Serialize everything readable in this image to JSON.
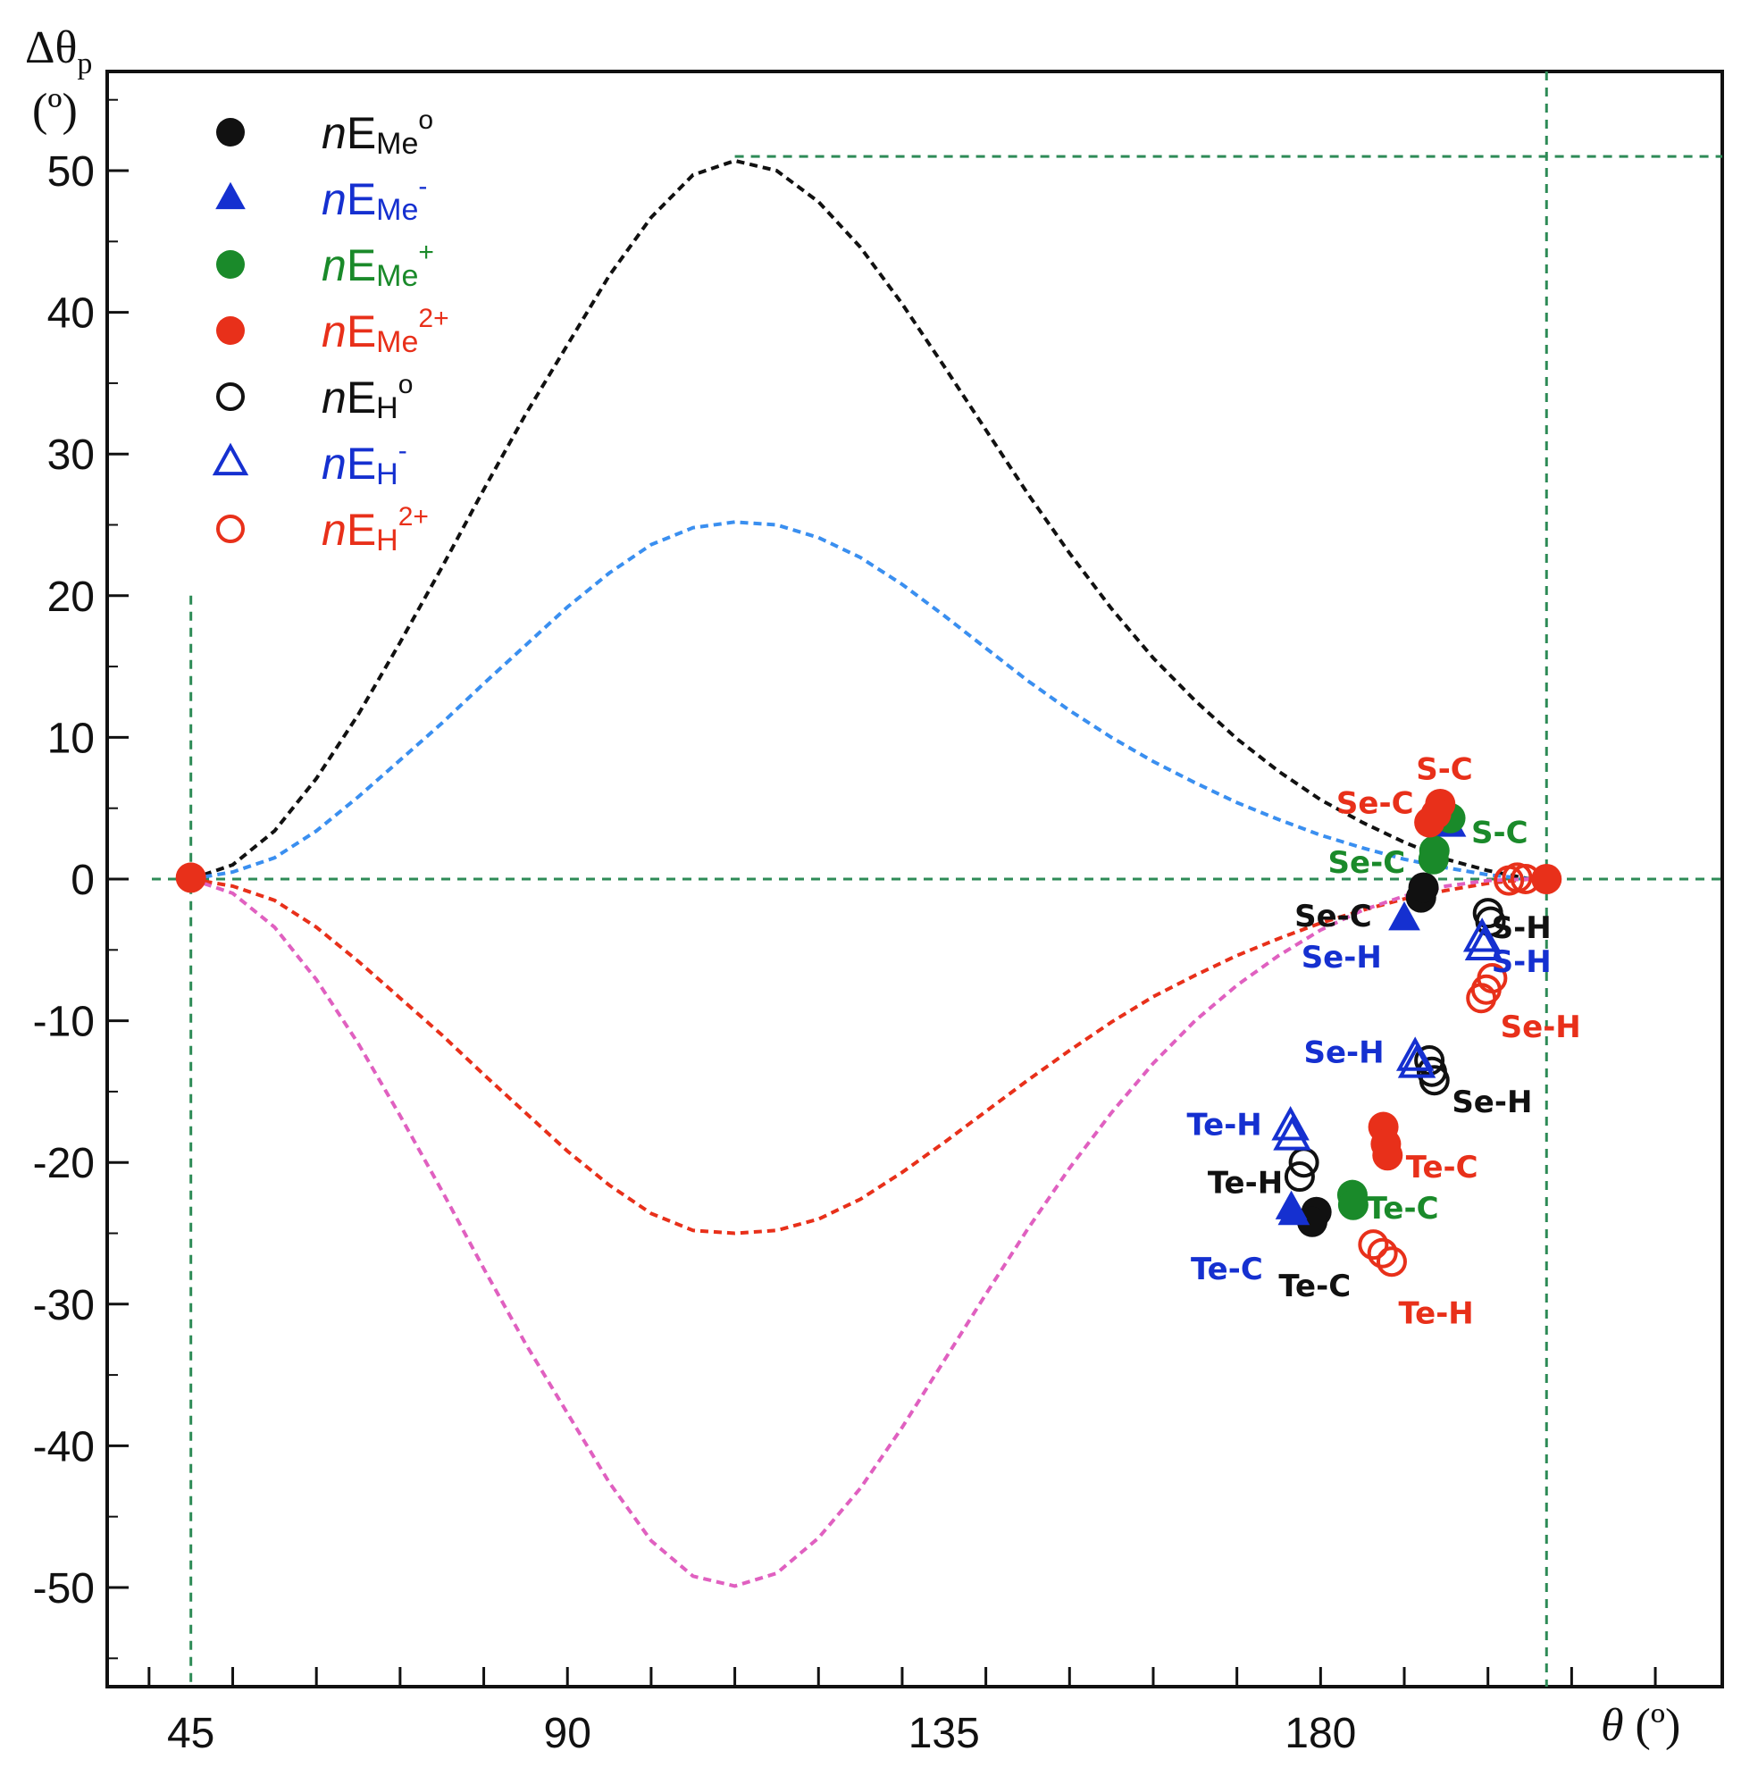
{
  "chart_data": {
    "type": "scatter",
    "title": "",
    "xlabel": "θ (º)",
    "ylabel": "Δθp (º)",
    "xlim": [
      35,
      228
    ],
    "ylim": [
      -57,
      57
    ],
    "x_ticks": [
      45,
      90,
      135,
      180
    ],
    "y_ticks": [
      50,
      40,
      30,
      20,
      10,
      0,
      -10,
      -20,
      -30,
      -40,
      -50
    ],
    "y_tick_labels": [
      "50",
      "40",
      "30",
      "20",
      "10",
      "0",
      "-10",
      "-20",
      "-30",
      "-40",
      "-50"
    ],
    "axis_labels": {
      "x_text": "θ",
      "x_unit": " (º)",
      "y_text": "Δθ",
      "y_sub": "p",
      "y_unit": "(º)"
    },
    "colors": {
      "black": "#111111",
      "blue": "#1530d0",
      "green": "#1a8a2a",
      "red": "#e8301a",
      "guide": "#2e8b57",
      "curve_blue": "#3a8ff0",
      "curve_pink": "#e060c0"
    },
    "reference_lines": {
      "x": [
        45,
        207
      ],
      "y": [
        0,
        51
      ]
    },
    "legend": [
      {
        "prefix": "n",
        "e": "E",
        "sub": "Me",
        "sup": "o",
        "marker": "filled-circle",
        "color": "#111111"
      },
      {
        "prefix": "n",
        "e": "E",
        "sub": "Me",
        "sup": "-",
        "marker": "filled-triangle",
        "color": "#1530d0"
      },
      {
        "prefix": "n",
        "e": "E",
        "sub": "Me",
        "sup": "+",
        "marker": "filled-circle",
        "color": "#1a8a2a"
      },
      {
        "prefix": "n",
        "e": "E",
        "sub": "Me",
        "sup": "2+",
        "marker": "filled-circle",
        "color": "#e8301a"
      },
      {
        "prefix": "n",
        "e": "E",
        "sub": "H",
        "sup": "o",
        "marker": "open-circle",
        "color": "#111111"
      },
      {
        "prefix": "n",
        "e": "E",
        "sub": "H",
        "sup": "-",
        "marker": "open-triangle",
        "color": "#1530d0"
      },
      {
        "prefix": "n",
        "e": "E",
        "sub": "H",
        "sup": "2+",
        "marker": "open-circle",
        "color": "#e8301a"
      }
    ],
    "curves": [
      {
        "name": "upper-black",
        "color": "#111111",
        "x": [
          45,
          50,
          55,
          60,
          65,
          70,
          75,
          80,
          85,
          90,
          95,
          100,
          105,
          110,
          115,
          120,
          125,
          130,
          135,
          140,
          145,
          150,
          155,
          160,
          165,
          170,
          175,
          180,
          185,
          190,
          195,
          200,
          205
        ],
        "y": [
          0,
          1.0,
          3.4,
          7.1,
          11.6,
          16.7,
          22.0,
          27.5,
          32.8,
          37.7,
          42.6,
          46.7,
          49.7,
          50.7,
          50.0,
          47.8,
          44.6,
          40.6,
          36.2,
          31.7,
          27.2,
          23.0,
          19.1,
          15.6,
          12.6,
          9.9,
          7.6,
          5.6,
          4.0,
          2.6,
          1.4,
          0.6,
          0
        ]
      },
      {
        "name": "upper-blue",
        "color": "#3a8ff0",
        "x": [
          45,
          50,
          55,
          60,
          65,
          70,
          75,
          80,
          85,
          90,
          95,
          100,
          105,
          110,
          115,
          120,
          125,
          130,
          135,
          140,
          145,
          150,
          155,
          160,
          165,
          170,
          175,
          180,
          185,
          190,
          195,
          200,
          205
        ],
        "y": [
          0,
          0.5,
          1.5,
          3.4,
          5.8,
          8.4,
          11.0,
          13.8,
          16.5,
          19.2,
          21.6,
          23.6,
          24.8,
          25.2,
          25.0,
          24.1,
          22.7,
          20.8,
          18.6,
          16.3,
          14.0,
          11.9,
          10.0,
          8.3,
          6.8,
          5.4,
          4.2,
          3.1,
          2.2,
          1.4,
          0.8,
          0.3,
          0
        ]
      },
      {
        "name": "lower-red",
        "color": "#e8301a",
        "x": [
          45,
          50,
          55,
          60,
          65,
          70,
          75,
          80,
          85,
          90,
          95,
          100,
          105,
          110,
          115,
          120,
          125,
          130,
          135,
          140,
          145,
          150,
          155,
          160,
          165,
          170,
          175,
          180,
          185,
          190,
          195,
          200,
          205
        ],
        "y": [
          0,
          -0.5,
          -1.5,
          -3.4,
          -5.8,
          -8.4,
          -11.0,
          -13.8,
          -16.5,
          -19.2,
          -21.6,
          -23.6,
          -24.8,
          -25.0,
          -24.8,
          -24.0,
          -22.6,
          -20.7,
          -18.6,
          -16.4,
          -14.2,
          -12.1,
          -10.1,
          -8.3,
          -6.8,
          -5.4,
          -4.2,
          -3.1,
          -2.2,
          -1.4,
          -0.8,
          -0.3,
          0
        ]
      },
      {
        "name": "lower-pink",
        "color": "#e060c0",
        "x": [
          45,
          50,
          55,
          60,
          65,
          70,
          75,
          80,
          85,
          90,
          95,
          100,
          105,
          110,
          115,
          120,
          125,
          130,
          135,
          140,
          145,
          150,
          155,
          160,
          165,
          170,
          175,
          180,
          185,
          190,
          195,
          200,
          205
        ],
        "y": [
          0,
          -1.0,
          -3.4,
          -7.1,
          -11.6,
          -16.7,
          -22.0,
          -27.5,
          -32.8,
          -37.7,
          -42.6,
          -46.7,
          -49.2,
          -49.9,
          -49.0,
          -46.5,
          -43.0,
          -38.7,
          -34.0,
          -29.3,
          -24.7,
          -20.4,
          -16.5,
          -13.0,
          -10.0,
          -7.5,
          -5.4,
          -3.6,
          -2.2,
          -1.2,
          -0.5,
          -0.1,
          0
        ]
      }
    ],
    "series": [
      {
        "name": "nEMeo",
        "marker": "filled-circle",
        "color": "#111111",
        "points": [
          {
            "x": 192.0,
            "y": -1.3
          },
          {
            "x": 192.3,
            "y": -0.6
          },
          {
            "x": 179.5,
            "y": -23.5
          },
          {
            "x": 179.0,
            "y": -24.2
          }
        ]
      },
      {
        "name": "nEMe-",
        "marker": "filled-triangle",
        "color": "#1530d0",
        "points": [
          {
            "x": 195.5,
            "y": 3.8
          },
          {
            "x": 190.0,
            "y": -2.8
          },
          {
            "x": 176.5,
            "y": -23.2
          },
          {
            "x": 176.8,
            "y": -23.6
          }
        ]
      },
      {
        "name": "nEMe+",
        "marker": "filled-circle",
        "color": "#1a8a2a",
        "points": [
          {
            "x": 195.5,
            "y": 4.3
          },
          {
            "x": 193.5,
            "y": 1.4
          },
          {
            "x": 193.6,
            "y": 2.0
          },
          {
            "x": 183.8,
            "y": -22.3
          },
          {
            "x": 183.9,
            "y": -23.0
          }
        ]
      },
      {
        "name": "nEMe2+",
        "marker": "filled-circle",
        "color": "#e8301a",
        "points": [
          {
            "x": 194.3,
            "y": 5.3
          },
          {
            "x": 193.8,
            "y": 4.6
          },
          {
            "x": 193.0,
            "y": 4.0
          },
          {
            "x": 207.0,
            "y": 0.0
          },
          {
            "x": 45.0,
            "y": 0.1
          },
          {
            "x": 187.5,
            "y": -17.5
          },
          {
            "x": 187.8,
            "y": -18.7
          },
          {
            "x": 188.0,
            "y": -19.5
          }
        ]
      },
      {
        "name": "nEHo",
        "marker": "open-circle",
        "color": "#111111",
        "points": [
          {
            "x": 200.0,
            "y": -2.4
          },
          {
            "x": 200.3,
            "y": -3.0
          },
          {
            "x": 193.0,
            "y": -12.8
          },
          {
            "x": 193.3,
            "y": -13.6
          },
          {
            "x": 193.6,
            "y": -14.2
          },
          {
            "x": 178.0,
            "y": -20.0
          },
          {
            "x": 177.5,
            "y": -21.0
          }
        ]
      },
      {
        "name": "nEH-",
        "marker": "open-triangle",
        "color": "#1530d0",
        "points": [
          {
            "x": 199.3,
            "y": -4.2
          },
          {
            "x": 199.5,
            "y": -4.8
          },
          {
            "x": 191.3,
            "y": -12.6
          },
          {
            "x": 191.5,
            "y": -13.1
          },
          {
            "x": 176.4,
            "y": -17.5
          },
          {
            "x": 176.6,
            "y": -18.2
          }
        ]
      },
      {
        "name": "nEH2+",
        "marker": "open-circle",
        "color": "#e8301a",
        "points": [
          {
            "x": 202.5,
            "y": -0.1
          },
          {
            "x": 203.5,
            "y": 0.1
          },
          {
            "x": 204.5,
            "y": 0.0
          },
          {
            "x": 200.5,
            "y": -7.0
          },
          {
            "x": 199.8,
            "y": -7.8
          },
          {
            "x": 199.2,
            "y": -8.4
          },
          {
            "x": 186.3,
            "y": -25.8
          },
          {
            "x": 187.4,
            "y": -26.4
          },
          {
            "x": 188.5,
            "y": -27.0
          }
        ]
      }
    ],
    "annotations": [
      {
        "text": "S-C",
        "x": 194.8,
        "y": 7.8,
        "color": "#e8301a"
      },
      {
        "text": "Se-C",
        "x": 186.5,
        "y": 5.4,
        "color": "#e8301a"
      },
      {
        "text": "S-C",
        "x": 201.4,
        "y": 3.3,
        "color": "#1a8a2a"
      },
      {
        "text": "Se-C",
        "x": 185.5,
        "y": 1.2,
        "color": "#1a8a2a"
      },
      {
        "text": "Se-C",
        "x": 181.5,
        "y": -2.6,
        "color": "#111111"
      },
      {
        "text": "Se-H",
        "x": 182.5,
        "y": -5.5,
        "color": "#1530d0"
      },
      {
        "text": "S-H",
        "x": 204.0,
        "y": -3.4,
        "color": "#111111"
      },
      {
        "text": "S-H",
        "x": 204.0,
        "y": -5.8,
        "color": "#1530d0"
      },
      {
        "text": "Se-H",
        "x": 206.3,
        "y": -10.4,
        "color": "#e8301a"
      },
      {
        "text": "Se-H",
        "x": 182.8,
        "y": -12.2,
        "color": "#1530d0"
      },
      {
        "text": "Se-H",
        "x": 200.5,
        "y": -15.7,
        "color": "#111111"
      },
      {
        "text": "Te-H",
        "x": 168.5,
        "y": -17.3,
        "color": "#1530d0"
      },
      {
        "text": "Te-C",
        "x": 194.5,
        "y": -20.3,
        "color": "#e8301a"
      },
      {
        "text": "Te-H",
        "x": 171.0,
        "y": -21.4,
        "color": "#111111"
      },
      {
        "text": "Te-C",
        "x": 189.8,
        "y": -23.2,
        "color": "#1a8a2a"
      },
      {
        "text": "Te-C",
        "x": 168.8,
        "y": -27.5,
        "color": "#1530d0"
      },
      {
        "text": "Te-C",
        "x": 179.3,
        "y": -28.7,
        "color": "#111111"
      },
      {
        "text": "Te-H",
        "x": 193.8,
        "y": -30.6,
        "color": "#e8301a"
      }
    ]
  }
}
